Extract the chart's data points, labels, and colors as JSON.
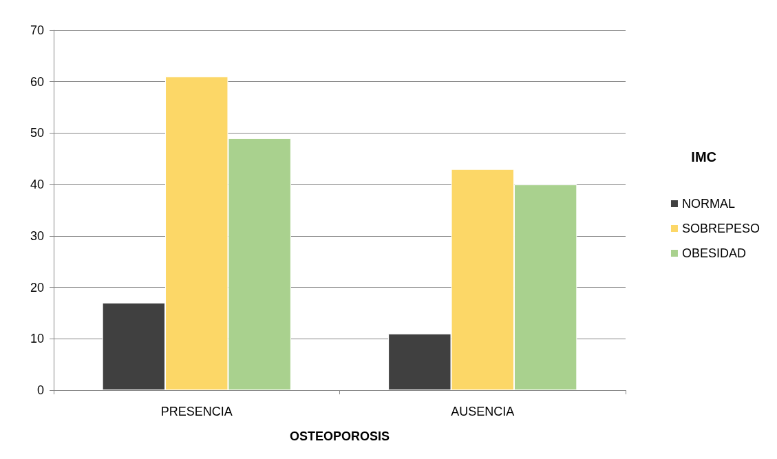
{
  "chart_data": {
    "type": "bar",
    "xlabel": "OSTEOPOROSIS",
    "legend_title": "IMC",
    "categories": [
      "PRESENCIA",
      "AUSENCIA"
    ],
    "series": [
      {
        "name": "NORMAL",
        "color": "#404040",
        "values": [
          17,
          11
        ]
      },
      {
        "name": "SOBREPESO",
        "color": "#fcd767",
        "values": [
          61,
          43
        ]
      },
      {
        "name": "OBESIDAD",
        "color": "#a9d18e",
        "values": [
          49,
          40
        ]
      }
    ],
    "ylim": [
      0,
      70
    ],
    "yticks": [
      0,
      10,
      20,
      30,
      40,
      50,
      60,
      70
    ],
    "grid": "y",
    "legend": "right"
  }
}
